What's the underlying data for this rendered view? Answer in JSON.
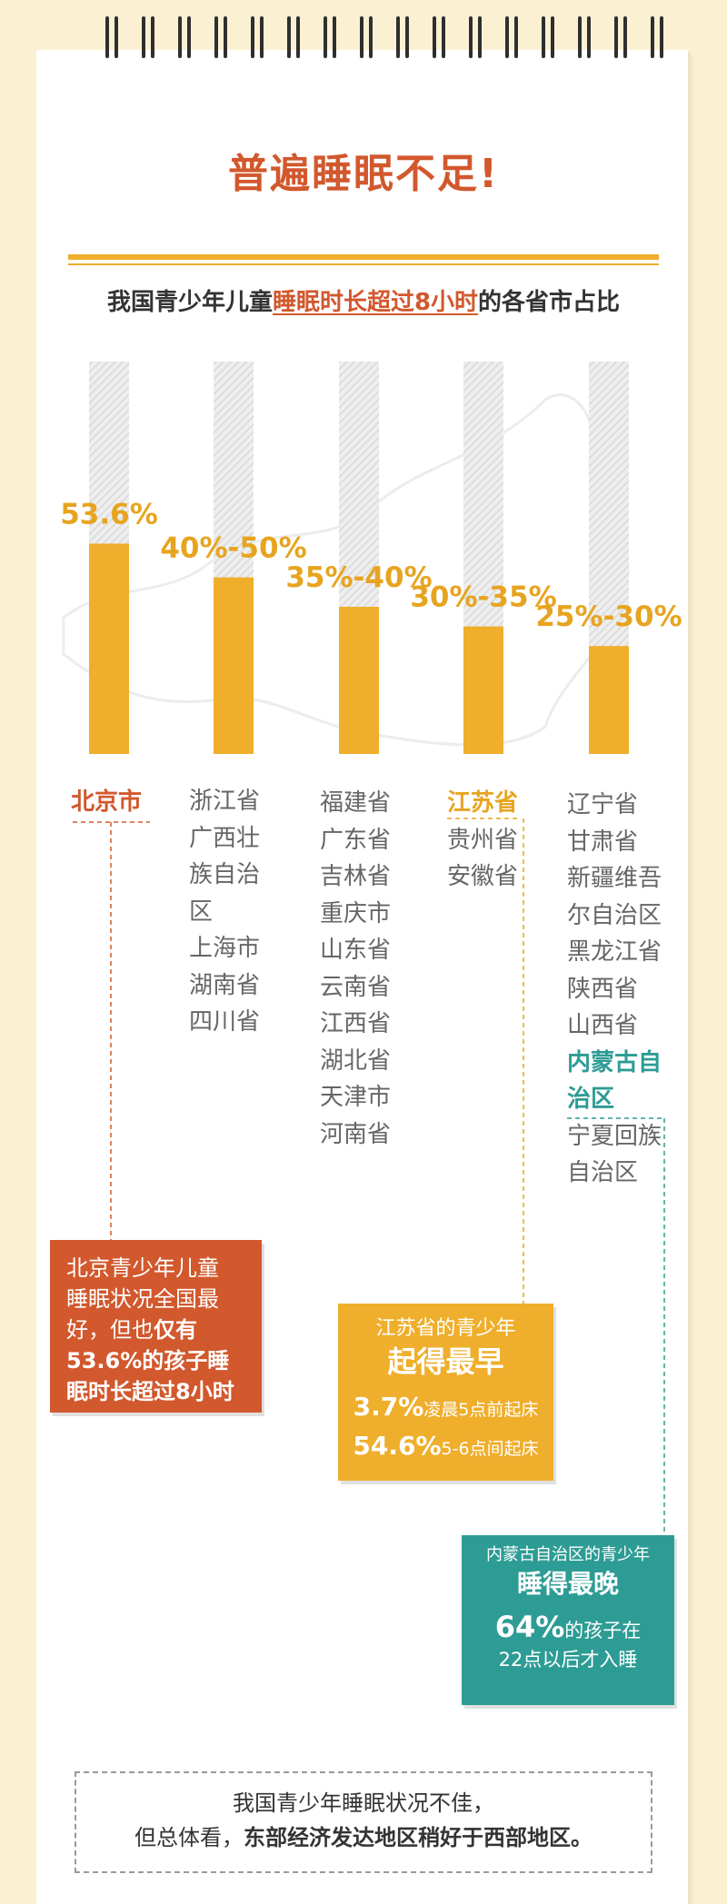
{
  "header": {
    "title": "普遍睡眠不足!"
  },
  "subtitle": {
    "part1": "我国青少年儿童",
    "highlight": "睡眠时长超过8小时",
    "part2": "的各省市占比"
  },
  "colors": {
    "accent": "#d2582d",
    "bar": "#efae2b",
    "teal": "#2d9c94",
    "label": "#e7a41f"
  },
  "chart_data": {
    "type": "bar",
    "title": "我国青少年儿童睡眠时长超过8小时的各省市占比",
    "categories": [
      "53.6%",
      "40%-50%",
      "35%-40%",
      "30%-35%",
      "25%-30%"
    ],
    "values": [
      53.6,
      45,
      37.5,
      32.5,
      27.5
    ],
    "ylim": [
      0,
      100
    ],
    "grid": false,
    "legend": "none"
  },
  "groups": [
    {
      "provinces": [
        "北京市"
      ]
    },
    {
      "provinces": [
        "浙江省",
        "广西壮",
        "族自治",
        "区",
        "上海市",
        "湖南省",
        "四川省"
      ]
    },
    {
      "provinces": [
        "福建省",
        "广东省",
        "吉林省",
        "重庆市",
        "山东省",
        "云南省",
        "江西省",
        "湖北省",
        "天津市",
        "河南省"
      ]
    },
    {
      "provinces": [
        "江苏省",
        "贵州省",
        "安徽省"
      ]
    },
    {
      "provinces": [
        "辽宁省",
        "甘肃省",
        "新疆维吾",
        "尔自治区",
        "黑龙江省",
        "陕西省",
        "山西省",
        "内蒙古自",
        "治区",
        "宁夏回族",
        "自治区"
      ]
    }
  ],
  "callouts": {
    "beijing": {
      "line1": "北京青少年儿童",
      "line2": "睡眠状况全国最",
      "line3": "好，但也",
      "bold1": "仅有",
      "bold2": "53.6%的孩子睡",
      "bold3": "眠时长超过8小时"
    },
    "jiangsu": {
      "line1": "江苏省的青少年",
      "line2": "起得最早",
      "stat1": "3.7%",
      "stat1_text": "凌晨5点前起床",
      "stat2": "54.6%",
      "stat2_text": "5-6点间起床"
    },
    "neimenggu": {
      "line1": "内蒙古自治区的青少年",
      "line2": "睡得最晚",
      "stat": "64%",
      "stat_text": "的孩子在",
      "line3": "22点以后才入睡"
    }
  },
  "footer": {
    "line1": "我国青少年睡眠状况不佳，",
    "line2_plain": "但总体看，",
    "line2_bold": "东部经济发达地区稍好于西部地区。"
  }
}
